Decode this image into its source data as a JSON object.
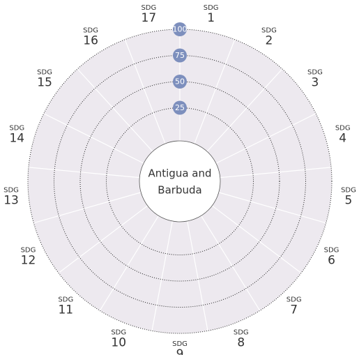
{
  "chart_data": {
    "type": "radial_bar",
    "label_prefix": "SDG",
    "categories": [
      "1",
      "2",
      "3",
      "4",
      "5",
      "6",
      "7",
      "8",
      "9",
      "10",
      "11",
      "12",
      "13",
      "14",
      "15",
      "16",
      "17"
    ],
    "center_label": [
      "Antigua and",
      "Barbuda"
    ],
    "rlim": [
      0,
      100
    ],
    "rticks": [
      25,
      50,
      75,
      100
    ],
    "background_color": "#ede9ef",
    "tick_badge_color": "#7d8fbd",
    "grid": true
  }
}
